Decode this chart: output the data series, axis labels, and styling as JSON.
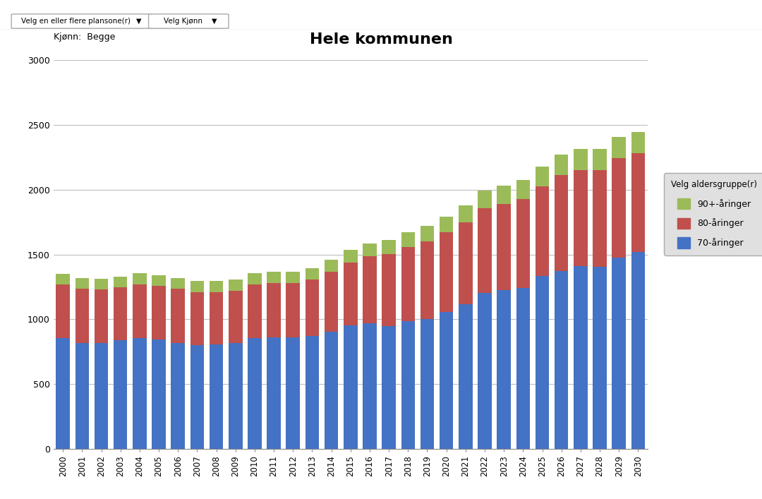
{
  "title": "Hele kommunen",
  "subtitle": "Kjønn:  Begge",
  "years": [
    2000,
    2001,
    2002,
    2003,
    2004,
    2005,
    2006,
    2007,
    2008,
    2009,
    2010,
    2011,
    2012,
    2013,
    2014,
    2015,
    2016,
    2017,
    2018,
    2019,
    2020,
    2021,
    2022,
    2023,
    2024,
    2025,
    2026,
    2027,
    2028,
    2029,
    2030
  ],
  "age70": [
    855,
    820,
    820,
    840,
    855,
    845,
    820,
    800,
    805,
    815,
    855,
    860,
    860,
    870,
    905,
    955,
    970,
    950,
    985,
    1000,
    1055,
    1115,
    1205,
    1225,
    1240,
    1335,
    1370,
    1410,
    1405,
    1475,
    1520
  ],
  "age80": [
    415,
    415,
    410,
    410,
    415,
    415,
    415,
    410,
    405,
    405,
    415,
    420,
    420,
    435,
    460,
    485,
    515,
    555,
    575,
    600,
    615,
    635,
    650,
    665,
    685,
    690,
    740,
    740,
    745,
    770,
    760
  ],
  "age90": [
    80,
    85,
    85,
    80,
    85,
    80,
    85,
    85,
    85,
    85,
    85,
    85,
    88,
    90,
    95,
    95,
    100,
    105,
    110,
    118,
    122,
    128,
    138,
    142,
    148,
    152,
    158,
    163,
    162,
    162,
    162
  ],
  "color70": "#4472C4",
  "color80": "#C0504D",
  "color90": "#9BBB59",
  "legend_title": "Velg aldersgruppe(r)",
  "legend_labels": [
    "90+-åringer",
    "80-åringer",
    "70-åringer"
  ],
  "ylim": [
    0,
    3000
  ],
  "yticks": [
    0,
    500,
    1000,
    1500,
    2000,
    2500,
    3000
  ],
  "bg_color": "#FFFFFF",
  "plot_bg_color": "#FFFFFF",
  "grid_color": "#BEBEBE",
  "toolbar_text1": "Velg en eller flere plansone(r)",
  "toolbar_text2": "Velg Kjønn"
}
